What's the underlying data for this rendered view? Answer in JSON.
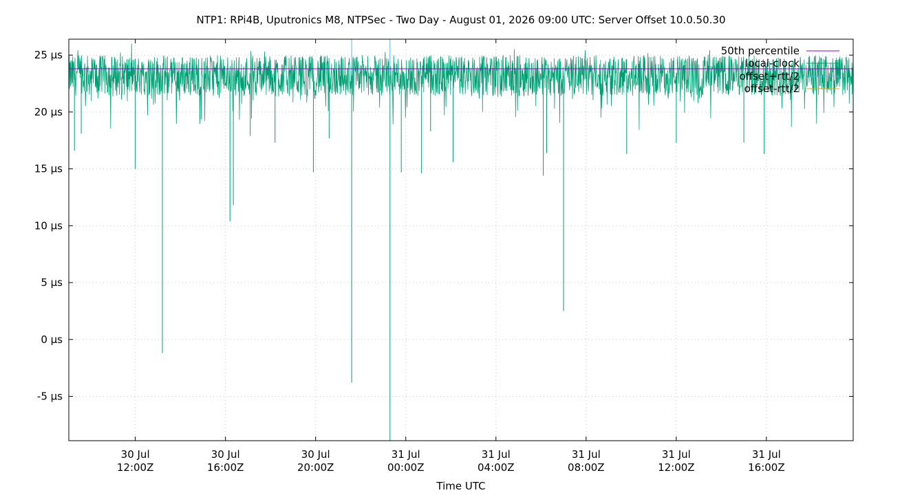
{
  "chart_data": {
    "type": "line",
    "title": "NTP1: RPi4B, Uputronics M8, NTPSec - Two Day - August 01, 2026 09:00 UTC: Server Offset 10.0.50.30",
    "xlabel": "Time UTC",
    "ylabel": "",
    "x_range_hours_from_30jul_00z": [
      9.05,
      43.85
    ],
    "ylim": [
      -8.9,
      26.4
    ],
    "y_unit": "µs",
    "y_ticks": [
      {
        "value": 25,
        "label": "25 µs"
      },
      {
        "value": 20,
        "label": "20 µs"
      },
      {
        "value": 15,
        "label": "15 µs"
      },
      {
        "value": 10,
        "label": "10 µs"
      },
      {
        "value": 5,
        "label": "5 µs"
      },
      {
        "value": 0,
        "label": "0 µs"
      },
      {
        "value": -5,
        "label": "-5 µs"
      }
    ],
    "x_ticks": [
      {
        "hours": 12,
        "date": "30 Jul",
        "time": "12:00Z"
      },
      {
        "hours": 16,
        "date": "30 Jul",
        "time": "16:00Z"
      },
      {
        "hours": 20,
        "date": "30 Jul",
        "time": "20:00Z"
      },
      {
        "hours": 24,
        "date": "31 Jul",
        "time": "00:00Z"
      },
      {
        "hours": 28,
        "date": "31 Jul",
        "time": "04:00Z"
      },
      {
        "hours": 32,
        "date": "31 Jul",
        "time": "08:00Z"
      },
      {
        "hours": 36,
        "date": "31 Jul",
        "time": "12:00Z"
      },
      {
        "hours": 40,
        "date": "31 Jul",
        "time": "16:00Z"
      }
    ],
    "grid": true,
    "legend_position": "top-right",
    "series": [
      {
        "name": "50th percentile",
        "color": "#9400d3",
        "value": 23.8
      },
      {
        "name": "local-clock",
        "color": "#009e73",
        "baseline": 23.2,
        "band": [
          21.2,
          25.4
        ],
        "spikes": [
          {
            "hours": 9.3,
            "value": 16.6
          },
          {
            "hours": 9.6,
            "value": 18.1
          },
          {
            "hours": 12.0,
            "value": 15.0
          },
          {
            "hours": 13.2,
            "value": -1.2
          },
          {
            "hours": 16.2,
            "value": 10.4
          },
          {
            "hours": 16.35,
            "value": 11.8
          },
          {
            "hours": 17.1,
            "value": 17.9
          },
          {
            "hours": 18.2,
            "value": 17.3
          },
          {
            "hours": 19.9,
            "value": 14.7
          },
          {
            "hours": 20.6,
            "value": 17.7
          },
          {
            "hours": 21.6,
            "value": -3.8
          },
          {
            "hours": 23.3,
            "value": -8.9
          },
          {
            "hours": 23.8,
            "value": 14.7
          },
          {
            "hours": 24.7,
            "value": 14.6
          },
          {
            "hours": 25.1,
            "value": 18.3
          },
          {
            "hours": 26.1,
            "value": 15.6
          },
          {
            "hours": 30.1,
            "value": 14.4
          },
          {
            "hours": 30.25,
            "value": 16.4
          },
          {
            "hours": 31.0,
            "value": 2.5
          },
          {
            "hours": 33.8,
            "value": 16.3
          },
          {
            "hours": 36.0,
            "value": 17.3
          },
          {
            "hours": 39.0,
            "value": 17.3
          },
          {
            "hours": 39.9,
            "value": 16.3
          }
        ]
      },
      {
        "name": "offset+rtt/2",
        "color": "#56b4e9",
        "spikes": [
          {
            "hours": 21.6,
            "value": 26.4
          },
          {
            "hours": 23.3,
            "value": 26.4
          }
        ]
      },
      {
        "name": "offset-rtt/2",
        "color": "#e69f00"
      }
    ]
  }
}
